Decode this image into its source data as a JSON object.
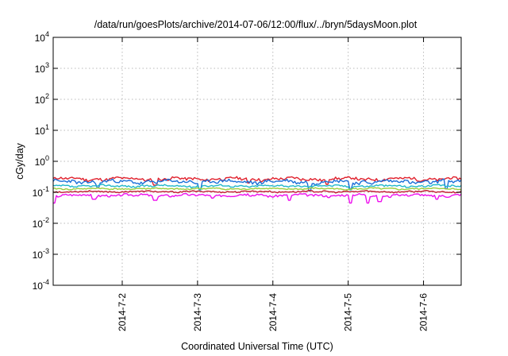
{
  "chart_data": {
    "type": "line",
    "title": "/data/run/goesPlots/archive/2014-07-06/12:00/flux/../bryn/5daysMoon.plot",
    "xlabel": "Coordinated Universal Time (UTC)",
    "ylabel": "cGy/day",
    "yscale": "log",
    "ylim": [
      0.0001,
      10000
    ],
    "xlim": [
      "2014-07-01 02:00",
      "2014-07-06 12:00"
    ],
    "y_ticks": [
      {
        "value": 0.0001,
        "base": "10",
        "exp": "-4"
      },
      {
        "value": 0.001,
        "base": "10",
        "exp": "-3"
      },
      {
        "value": 0.01,
        "base": "10",
        "exp": "-2"
      },
      {
        "value": 0.1,
        "base": "10",
        "exp": "-1"
      },
      {
        "value": 1,
        "base": "10",
        "exp": "0"
      },
      {
        "value": 10,
        "base": "10",
        "exp": "1"
      },
      {
        "value": 100,
        "base": "10",
        "exp": "2"
      },
      {
        "value": 1000,
        "base": "10",
        "exp": "3"
      },
      {
        "value": 10000,
        "base": "10",
        "exp": "4"
      }
    ],
    "x_ticks": [
      {
        "value": "2014-07-02 00:00",
        "label": "2014-7-2"
      },
      {
        "value": "2014-07-03 00:00",
        "label": "2014-7-3"
      },
      {
        "value": "2014-07-04 00:00",
        "label": "2014-7-4"
      },
      {
        "value": "2014-07-05 00:00",
        "label": "2014-7-5"
      },
      {
        "value": "2014-07-06 00:00",
        "label": "2014-7-6"
      }
    ],
    "grid": true,
    "legend": "none",
    "series": [
      {
        "color": "#e0202c",
        "level": 0.27,
        "variation": 0.13,
        "dips": [
          [
            0.25,
            0.17
          ],
          [
            0.48,
            0.2
          ],
          [
            0.67,
            0.18
          ]
        ],
        "seed": 11
      },
      {
        "color": "#1c6fd8",
        "level": 0.22,
        "variation": 0.15,
        "dips": [
          [
            0.11,
            0.14
          ],
          [
            0.36,
            0.12
          ],
          [
            0.63,
            0.11
          ],
          [
            0.73,
            0.13
          ],
          [
            0.965,
            0.13
          ]
        ],
        "seed": 23
      },
      {
        "color": "#22b8c9",
        "level": 0.16,
        "variation": 0.08,
        "dips": [
          [
            0.36,
            0.12
          ],
          [
            0.73,
            0.12
          ]
        ],
        "seed": 37
      },
      {
        "color": "#9ccc3c",
        "level": 0.13,
        "variation": 0.06,
        "dips": [],
        "seed": 41
      },
      {
        "color": "#c01830",
        "level": 0.105,
        "variation": 0.06,
        "dips": [],
        "seed": 53
      },
      {
        "color": "#ee10ee",
        "level": 0.08,
        "variation": 0.1,
        "dips": [
          [
            0.0,
            0.045
          ],
          [
            0.1,
            0.06
          ],
          [
            0.25,
            0.055
          ],
          [
            0.39,
            0.065
          ],
          [
            0.58,
            0.055
          ],
          [
            0.73,
            0.045
          ],
          [
            0.77,
            0.045
          ],
          [
            0.8,
            0.05
          ],
          [
            0.94,
            0.06
          ]
        ],
        "seed": 67
      }
    ]
  }
}
